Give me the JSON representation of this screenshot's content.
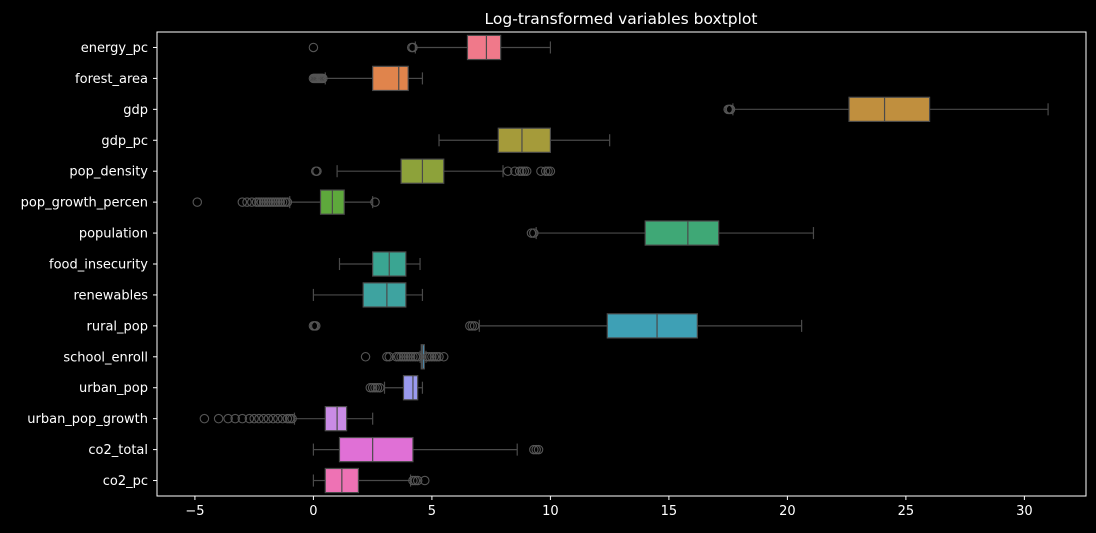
{
  "chart_data": {
    "type": "boxplot",
    "orientation": "horizontal",
    "title": "Log-transformed variables boxtplot",
    "xlabel": "",
    "ylabel": "",
    "xlim": [
      -6.6,
      32.6
    ],
    "xticks": [
      -5,
      0,
      5,
      10,
      15,
      20,
      25,
      30
    ],
    "grid": false,
    "series": [
      {
        "name": "energy_pc",
        "color": "#f0798a",
        "whislo": 4.3,
        "q1": 6.5,
        "med": 7.3,
        "q3": 7.9,
        "whishi": 10.0,
        "fliers": [
          0.0,
          4.15,
          4.2
        ]
      },
      {
        "name": "forest_area",
        "color": "#e0844c",
        "whislo": 0.5,
        "q1": 2.5,
        "med": 3.6,
        "q3": 4.0,
        "whishi": 4.6,
        "fliers": [
          0.0,
          0.05,
          0.1,
          0.15,
          0.2,
          0.25,
          0.3,
          0.35,
          0.4
        ]
      },
      {
        "name": "gdp",
        "color": "#c08f3e",
        "whislo": 17.7,
        "q1": 22.6,
        "med": 24.1,
        "q3": 26.0,
        "whishi": 31.0,
        "fliers": [
          17.5,
          17.55,
          17.6
        ]
      },
      {
        "name": "gdp_pc",
        "color": "#a59b3a",
        "whislo": 5.3,
        "q1": 7.8,
        "med": 8.8,
        "q3": 10.0,
        "whishi": 12.5,
        "fliers": []
      },
      {
        "name": "pop_density",
        "color": "#8da23a",
        "whislo": 1.0,
        "q1": 3.7,
        "med": 4.6,
        "q3": 5.5,
        "whishi": 8.0,
        "fliers": [
          0.1,
          0.15,
          8.2,
          8.5,
          8.7,
          8.8,
          8.9,
          9.0,
          9.6,
          9.8,
          9.9,
          10.0
        ]
      },
      {
        "name": "pop_growth_percen",
        "color": "#5ea83c",
        "whislo": -1.0,
        "q1": 0.3,
        "med": 0.8,
        "q3": 1.3,
        "whishi": 2.5,
        "fliers": [
          -4.9,
          -3.0,
          -2.8,
          -2.6,
          -2.4,
          -2.3,
          -2.2,
          -2.1,
          -2.0,
          -1.9,
          -1.8,
          -1.7,
          -1.6,
          -1.5,
          -1.4,
          -1.3,
          -1.2,
          -1.1,
          2.6
        ]
      },
      {
        "name": "population",
        "color": "#3fa876",
        "whislo": 9.4,
        "q1": 14.0,
        "med": 15.8,
        "q3": 17.1,
        "whishi": 21.1,
        "fliers": [
          9.2,
          9.3
        ]
      },
      {
        "name": "food_insecurity",
        "color": "#3aa592",
        "whislo": 1.1,
        "q1": 2.5,
        "med": 3.2,
        "q3": 3.9,
        "whishi": 4.5,
        "fliers": []
      },
      {
        "name": "renewables",
        "color": "#3ea3a0",
        "whislo": 0.0,
        "q1": 2.1,
        "med": 3.1,
        "q3": 3.9,
        "whishi": 4.6,
        "fliers": []
      },
      {
        "name": "rural_pop",
        "color": "#3ea0b5",
        "whislo": 7.0,
        "q1": 12.4,
        "med": 14.5,
        "q3": 16.2,
        "whishi": 20.6,
        "fliers": [
          0.0,
          0.05,
          0.1,
          6.6,
          6.7,
          6.8
        ]
      },
      {
        "name": "school_enroll",
        "color": "#4a9fd0",
        "whislo": 4.5,
        "q1": 4.55,
        "med": 4.6,
        "q3": 4.68,
        "whishi": 4.75,
        "fliers": [
          2.2,
          3.1,
          3.2,
          3.5,
          3.6,
          3.7,
          3.8,
          3.9,
          4.0,
          4.1,
          4.2,
          4.3,
          4.4,
          4.8,
          4.9,
          5.0,
          5.1,
          5.2,
          5.3,
          5.5
        ]
      },
      {
        "name": "urban_pop",
        "color": "#9a9aee",
        "whislo": 3.0,
        "q1": 3.8,
        "med": 4.2,
        "q3": 4.4,
        "whishi": 4.6,
        "fliers": [
          2.4,
          2.5,
          2.6,
          2.7,
          2.8
        ]
      },
      {
        "name": "urban_pop_growth",
        "color": "#c98be6",
        "whislo": -0.8,
        "q1": 0.5,
        "med": 1.0,
        "q3": 1.4,
        "whishi": 2.5,
        "fliers": [
          -4.6,
          -4.0,
          -3.6,
          -3.3,
          -3.0,
          -2.7,
          -2.5,
          -2.3,
          -2.1,
          -1.9,
          -1.7,
          -1.5,
          -1.3,
          -1.1,
          -1.0,
          -0.9
        ]
      },
      {
        "name": "co2_total",
        "color": "#e070d6",
        "whislo": 0.0,
        "q1": 1.1,
        "med": 2.5,
        "q3": 4.2,
        "whishi": 8.6,
        "fliers": [
          9.3,
          9.4,
          9.5
        ]
      },
      {
        "name": "co2_pc",
        "color": "#ee72b4",
        "whislo": 0.0,
        "q1": 0.5,
        "med": 1.2,
        "q3": 1.9,
        "whishi": 4.1,
        "fliers": [
          4.2,
          4.3,
          4.4,
          4.7
        ]
      }
    ]
  }
}
